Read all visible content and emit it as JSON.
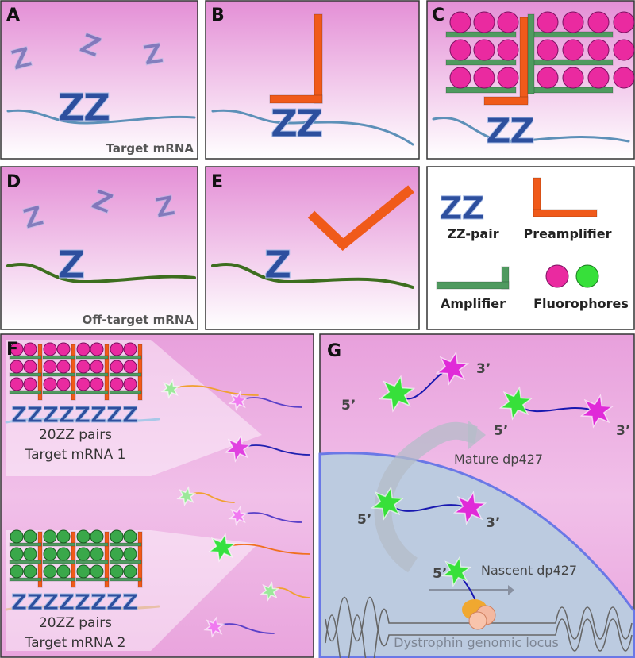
{
  "probe_glyph": "Z",
  "panels": {
    "a": {
      "label": "A",
      "caption": "Target mRNA"
    },
    "b": {
      "label": "B"
    },
    "c": {
      "label": "C"
    },
    "d": {
      "label": "D",
      "caption": "Off-target mRNA"
    },
    "e": {
      "label": "E"
    },
    "legend": {
      "zz_pair": "ZZ-pair",
      "preamplifier": "Preamplifier",
      "amplifier": "Amplifier",
      "fluorophores": "Fluorophores"
    },
    "f": {
      "label": "F",
      "target_1": {
        "probes": "20ZZ pairs",
        "name": "Target mRNA 1"
      },
      "target_2": {
        "probes": "20ZZ pairs",
        "name": "Target mRNA 2"
      }
    },
    "g": {
      "label": "G",
      "mature": "Mature dp427",
      "nascent": "Nascent dp427",
      "locus": "Dystrophin genomic locus",
      "five_prime": "5’",
      "three_prime": "3’"
    }
  }
}
